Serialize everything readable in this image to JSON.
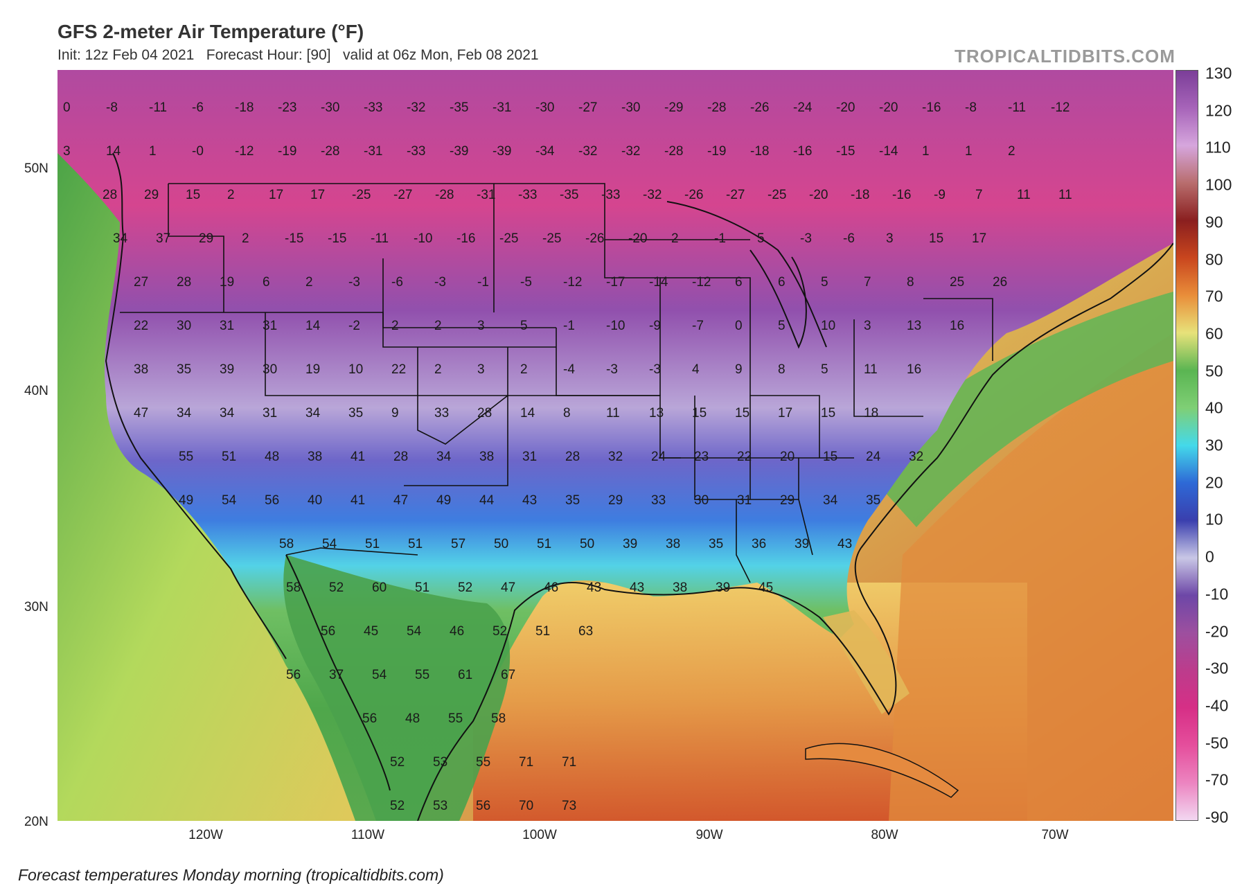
{
  "header": {
    "title": "GFS 2-meter Air Temperature (°F)",
    "subtitle": "Init: 12z Feb 04 2021   Forecast Hour: [90]   valid at 06z Mon, Feb 08 2021",
    "brand": "TROPICALTIDBITS.COM"
  },
  "caption": "Forecast temperatures Monday morning (tropicaltidbits.com)",
  "map": {
    "lat_labels": [
      "50N",
      "40N",
      "30N",
      "20N"
    ],
    "lon_labels": [
      "120W",
      "110W",
      "100W",
      "90W",
      "80W",
      "70W"
    ],
    "temperature_rows": [
      [
        "0",
        "-8",
        "-11",
        "-6",
        "-18",
        "-23",
        "-30",
        "-33",
        "-32",
        "-35",
        "-31",
        "-30",
        "-27",
        "-30",
        "-29",
        "-28",
        "-26",
        "-24",
        "-20",
        "-20",
        "-16",
        "-8",
        "-11",
        "-12"
      ],
      [
        "3",
        "14",
        "1",
        "-0",
        "-12",
        "-19",
        "-28",
        "-31",
        "-33",
        "-39",
        "-39",
        "-34",
        "-32",
        "-32",
        "-28",
        "-19",
        "-18",
        "-16",
        "-15",
        "-14",
        "1",
        "1",
        "2"
      ],
      [
        "28",
        "29",
        "15",
        "2",
        "17",
        "17",
        "-25",
        "-27",
        "-28",
        "-31",
        "-33",
        "-35",
        "-33",
        "-32",
        "-26",
        "-27",
        "-25",
        "-20",
        "-18",
        "-16",
        "-9",
        "7",
        "11",
        "11"
      ],
      [
        "34",
        "37",
        "29",
        "2",
        "-15",
        "-15",
        "-11",
        "-10",
        "-16",
        "-25",
        "-25",
        "-26",
        "-20",
        "2",
        "-1",
        "5",
        "-3",
        "-6",
        "3",
        "15",
        "17"
      ],
      [
        "27",
        "28",
        "19",
        "6",
        "2",
        "-3",
        "-6",
        "-3",
        "-1",
        "-5",
        "-12",
        "-17",
        "-14",
        "-12",
        "6",
        "6",
        "5",
        "7",
        "8",
        "25",
        "26"
      ],
      [
        "22",
        "30",
        "31",
        "31",
        "14",
        "-2",
        "2",
        "2",
        "3",
        "5",
        "-1",
        "-10",
        "-9",
        "-7",
        "0",
        "5",
        "10",
        "3",
        "13",
        "16"
      ],
      [
        "38",
        "35",
        "39",
        "30",
        "19",
        "10",
        "22",
        "2",
        "3",
        "2",
        "-4",
        "-3",
        "-3",
        "4",
        "9",
        "8",
        "5",
        "11",
        "16"
      ],
      [
        "47",
        "34",
        "34",
        "31",
        "34",
        "35",
        "9",
        "33",
        "28",
        "14",
        "8",
        "11",
        "13",
        "15",
        "15",
        "17",
        "15",
        "18"
      ],
      [
        "55",
        "51",
        "48",
        "38",
        "41",
        "28",
        "34",
        "38",
        "31",
        "28",
        "32",
        "24",
        "23",
        "22",
        "20",
        "15",
        "24",
        "32"
      ],
      [
        "49",
        "54",
        "56",
        "40",
        "41",
        "47",
        "49",
        "44",
        "43",
        "35",
        "29",
        "33",
        "30",
        "31",
        "29",
        "34",
        "35"
      ],
      [
        "58",
        "54",
        "51",
        "51",
        "57",
        "50",
        "51",
        "50",
        "39",
        "38",
        "35",
        "36",
        "39",
        "43"
      ],
      [
        "58",
        "52",
        "60",
        "51",
        "52",
        "47",
        "46",
        "43",
        "43",
        "38",
        "39",
        "45"
      ],
      [
        "56",
        "45",
        "54",
        "46",
        "52",
        "51",
        "63"
      ],
      [
        "56",
        "37",
        "54",
        "55",
        "61",
        "67"
      ],
      [
        "56",
        "48",
        "55",
        "58"
      ],
      [
        "52",
        "53",
        "55",
        "71",
        "71"
      ],
      [
        "52",
        "53",
        "56",
        "70",
        "73"
      ]
    ]
  },
  "colorbar": {
    "ticks": [
      "130",
      "120",
      "110",
      "100",
      "90",
      "80",
      "70",
      "60",
      "50",
      "40",
      "30",
      "20",
      "10",
      "0",
      "-10",
      "-20",
      "-30",
      "-40",
      "-50",
      "-70",
      "-90"
    ],
    "colors": [
      "#7b3e98",
      "#a764b9",
      "#d6a6dd",
      "#b86d6d",
      "#8a1f1f",
      "#c9461e",
      "#e98e3a",
      "#e7e27a",
      "#5ab552",
      "#7fcf75",
      "#44d9ea",
      "#2e69d6",
      "#3a3fae",
      "#c9c7e6",
      "#6d47a7",
      "#9d4f9f",
      "#bc3c8c",
      "#d62f86",
      "#e54e9c",
      "#ec84c0",
      "#f2d7f1"
    ]
  }
}
